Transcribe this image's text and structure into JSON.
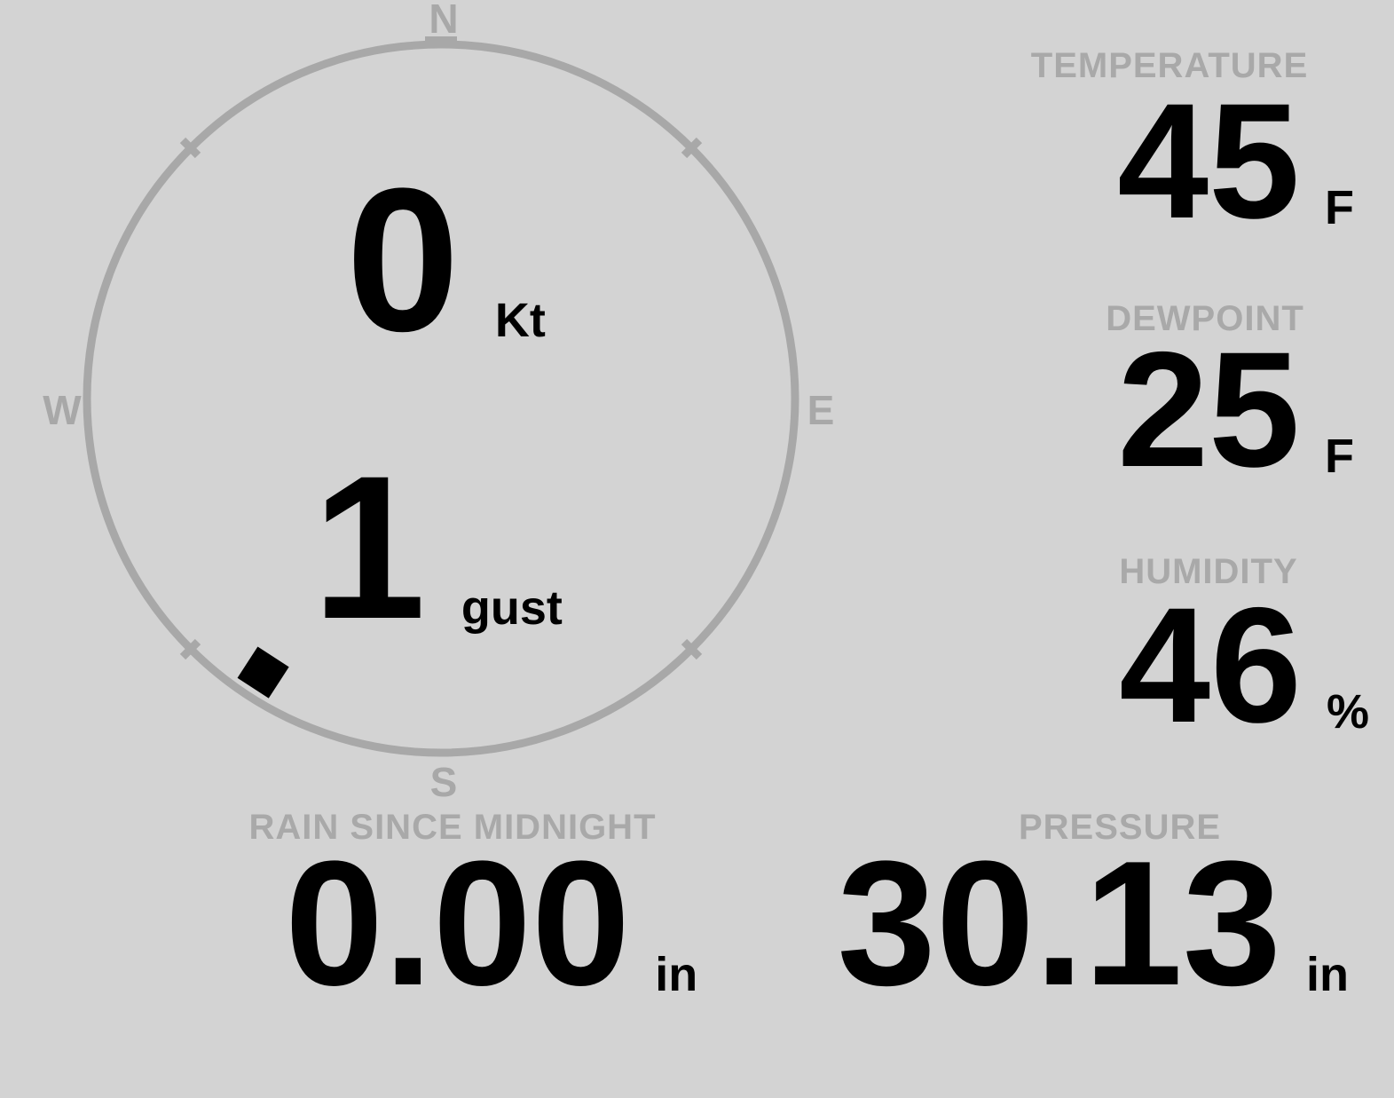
{
  "theme": {
    "background": "#d3d3d3",
    "muted_gray": "#a8a8a8",
    "value_black": "#000000"
  },
  "wind": {
    "label_n": "N",
    "label_e": "E",
    "label_s": "S",
    "label_w": "W",
    "speed": "0",
    "speed_unit": "Kt",
    "gust": "1",
    "gust_unit": "gust",
    "direction_degrees": 213
  },
  "panels": {
    "temperature": {
      "label": "TEMPERATURE",
      "value": "45",
      "unit": "F"
    },
    "dewpoint": {
      "label": "DEWPOINT",
      "value": "25",
      "unit": "F"
    },
    "humidity": {
      "label": "HUMIDITY",
      "value": "46",
      "unit": "%"
    },
    "rain": {
      "label": "RAIN SINCE MIDNIGHT",
      "value": "0.00",
      "unit": "in"
    },
    "pressure": {
      "label": "PRESSURE",
      "value": "30.13",
      "unit": "in"
    }
  }
}
